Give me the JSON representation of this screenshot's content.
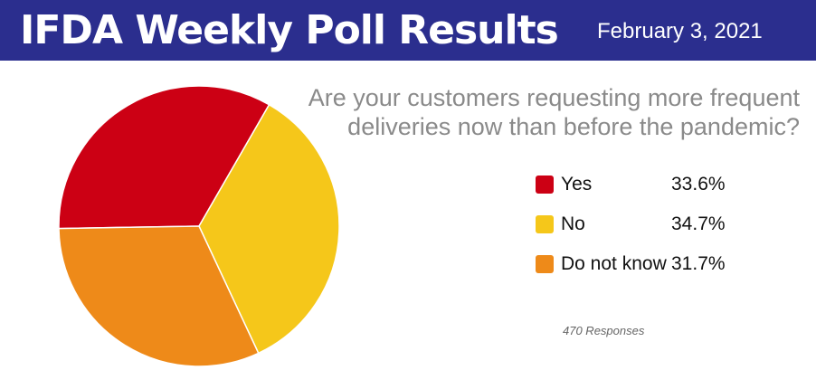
{
  "header": {
    "title": "IFDA Weekly Poll Results",
    "date": "February 3, 2021"
  },
  "colors": {
    "header_bg": "#2b2e8e",
    "yes": "#cc0014",
    "no": "#f5c71a",
    "do_not_know": "#ee8a19"
  },
  "chart_data": {
    "type": "pie",
    "title": "Are your customers requesting more frequent deliveries now than before the pandemic?",
    "slices": [
      {
        "label": "Yes",
        "value": 33.6,
        "display": "33.6%",
        "color": "#cc0014"
      },
      {
        "label": "No",
        "value": 34.7,
        "display": "34.7%",
        "color": "#f5c71a"
      },
      {
        "label": "Do not know",
        "value": 31.7,
        "display": "31.7%",
        "color": "#ee8a19"
      }
    ],
    "legend_position": "right",
    "responses_note": "470 Responses"
  }
}
